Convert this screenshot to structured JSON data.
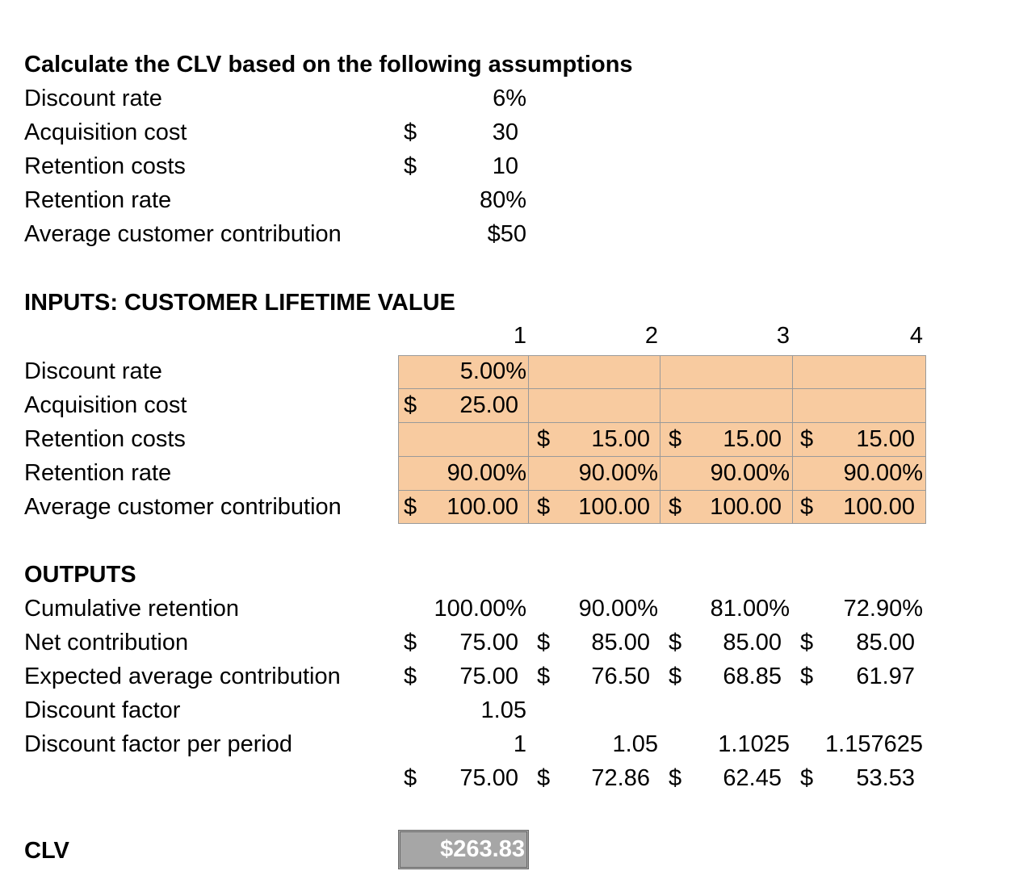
{
  "assumptions": {
    "title": "Calculate the CLV based on the following assumptions",
    "rows": [
      {
        "label": "Discount rate",
        "currency": "",
        "value": "6%"
      },
      {
        "label": "Acquisition cost",
        "currency": "$",
        "value": "30"
      },
      {
        "label": "Retention costs",
        "currency": "$",
        "value": "10"
      },
      {
        "label": "Retention rate",
        "currency": "",
        "value": "80%"
      },
      {
        "label": "Average customer contribution",
        "currency": "",
        "value": "$50"
      }
    ]
  },
  "inputs": {
    "title": "INPUTS: CUSTOMER LIFETIME VALUE",
    "periods": [
      "1",
      "2",
      "3",
      "4"
    ],
    "rows": [
      {
        "label": "Discount rate",
        "cells": [
          {
            "cur": "",
            "val": "5.00%"
          },
          {
            "cur": "",
            "val": ""
          },
          {
            "cur": "",
            "val": ""
          },
          {
            "cur": "",
            "val": ""
          }
        ]
      },
      {
        "label": "Acquisition cost",
        "cells": [
          {
            "cur": "$",
            "val": "25.00"
          },
          {
            "cur": "",
            "val": ""
          },
          {
            "cur": "",
            "val": ""
          },
          {
            "cur": "",
            "val": ""
          }
        ]
      },
      {
        "label": "Retention costs",
        "cells": [
          {
            "cur": "",
            "val": ""
          },
          {
            "cur": "$",
            "val": "15.00"
          },
          {
            "cur": "$",
            "val": "15.00"
          },
          {
            "cur": "$",
            "val": "15.00"
          }
        ]
      },
      {
        "label": "Retention rate",
        "cells": [
          {
            "cur": "",
            "val": "90.00%"
          },
          {
            "cur": "",
            "val": "90.00%"
          },
          {
            "cur": "",
            "val": "90.00%"
          },
          {
            "cur": "",
            "val": "90.00%"
          }
        ]
      },
      {
        "label": "Average customer contribution",
        "cells": [
          {
            "cur": "$",
            "val": "100.00"
          },
          {
            "cur": "$",
            "val": "100.00"
          },
          {
            "cur": "$",
            "val": "100.00"
          },
          {
            "cur": "$",
            "val": "100.00"
          }
        ]
      }
    ]
  },
  "outputs": {
    "title": "OUTPUTS",
    "rows": [
      {
        "label": "Cumulative retention",
        "cells": [
          {
            "cur": "",
            "val": "100.00%"
          },
          {
            "cur": "",
            "val": "90.00%"
          },
          {
            "cur": "",
            "val": "81.00%"
          },
          {
            "cur": "",
            "val": "72.90%"
          }
        ]
      },
      {
        "label": "Net contribution",
        "cells": [
          {
            "cur": "$",
            "val": "75.00"
          },
          {
            "cur": "$",
            "val": "85.00"
          },
          {
            "cur": "$",
            "val": "85.00"
          },
          {
            "cur": "$",
            "val": "85.00"
          }
        ]
      },
      {
        "label": "Expected average contribution",
        "cells": [
          {
            "cur": "$",
            "val": "75.00"
          },
          {
            "cur": "$",
            "val": "76.50"
          },
          {
            "cur": "$",
            "val": "68.85"
          },
          {
            "cur": "$",
            "val": "61.97"
          }
        ]
      },
      {
        "label": "Discount factor",
        "cells": [
          {
            "cur": "",
            "val": "1.05"
          },
          {
            "cur": "",
            "val": ""
          },
          {
            "cur": "",
            "val": ""
          },
          {
            "cur": "",
            "val": ""
          }
        ]
      },
      {
        "label": "Discount factor per period",
        "cells": [
          {
            "cur": "",
            "val": "1"
          },
          {
            "cur": "",
            "val": "1.05"
          },
          {
            "cur": "",
            "val": "1.1025"
          },
          {
            "cur": "",
            "val": "1.157625"
          }
        ]
      },
      {
        "label": "",
        "cells": [
          {
            "cur": "$",
            "val": "75.00"
          },
          {
            "cur": "$",
            "val": "72.86"
          },
          {
            "cur": "$",
            "val": "62.45"
          },
          {
            "cur": "$",
            "val": "53.53"
          }
        ]
      }
    ]
  },
  "clv": {
    "label": "CLV",
    "value": "$263.83"
  }
}
